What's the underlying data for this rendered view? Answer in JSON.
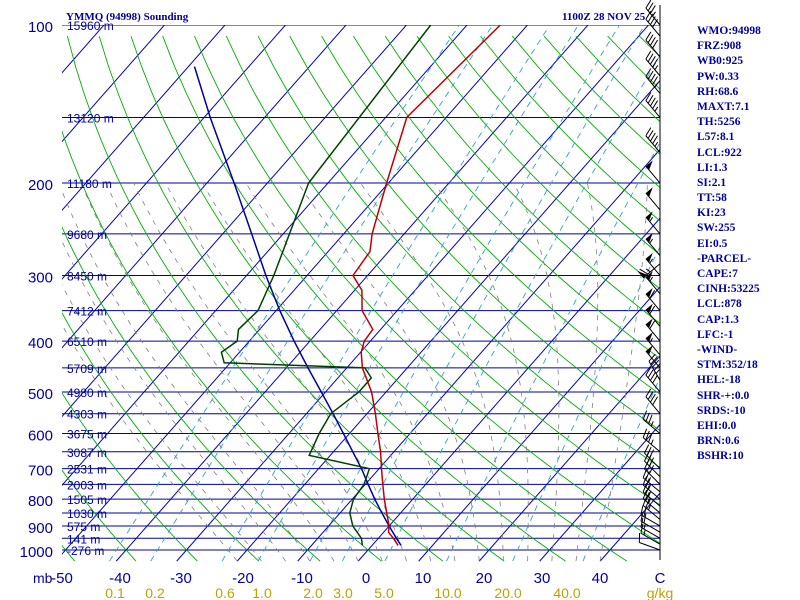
{
  "header": {
    "title": "YMMQ (94998) Sounding",
    "timestamp": "1100Z 28 NOV 25"
  },
  "colors": {
    "isobar": "#0000a0",
    "isotherm": "#0000c0",
    "dry_adiabat": "#00b000",
    "moist_adiabat": "#7f7f7f",
    "mixing_ratio": "#30a0d0",
    "temperature": "#c00000",
    "dewpoint": "#004000",
    "parcel": "#0000a0",
    "wind": "#000000",
    "axis_text": "#0000a0",
    "mixing_text": "#c0a000",
    "side_text": "#0000a0"
  },
  "side_panel": [
    "WMO:94998",
    "FRZ:908",
    "WB0:925",
    "PW:0.33",
    "RH:68.6",
    "MAXT:7.1",
    "TH:5256",
    "L57:8.1",
    "LCL:922",
    "LI:1.3",
    "SI:2.1",
    "TT:58",
    "KI:23",
    "SW:255",
    "EI:0.5",
    "-PARCEL-",
    "CAPE:7",
    "CINH:53225",
    "LCL:878",
    "CAP:1.3",
    "LFC:-1",
    "-WIND-",
    "STM:352/18",
    "HEL:-18",
    "SHR-+:0.0",
    "SRDS:-10",
    "EHI:0.0",
    "BRN:0.6",
    "BSHR:10"
  ],
  "chart_data": {
    "type": "skew-t",
    "title": "YMMQ (94998) Sounding",
    "x_axis_unit": "C",
    "y_axis_unit": "mb",
    "mixing_ratio_unit": "g/kg",
    "pressure_ticks": [
      "100",
      "200",
      "300",
      "400",
      "500",
      "600",
      "700",
      "800",
      "900",
      "1000"
    ],
    "temperature_ticks": [
      "-50",
      "-40",
      "-30",
      "-20",
      "-10",
      "0",
      "10",
      "20",
      "30",
      "40",
      "C"
    ],
    "mixing_ratio_ticks": [
      "0.1",
      "0.2",
      "0.6",
      "1.0",
      "2.0",
      "3.0",
      "5.0",
      "10.0",
      "20.0",
      "40.0",
      "g/kg"
    ],
    "height_labels": [
      {
        "p": 100,
        "label": "15960 m"
      },
      {
        "p": 150,
        "label": "13120 m"
      },
      {
        "p": 200,
        "label": "11180 m"
      },
      {
        "p": 250,
        "label": "9680 m"
      },
      {
        "p": 300,
        "label": "8450 m"
      },
      {
        "p": 350,
        "label": "7412 m"
      },
      {
        "p": 400,
        "label": "6510 m"
      },
      {
        "p": 450,
        "label": "5709 m"
      },
      {
        "p": 500,
        "label": "4980 m"
      },
      {
        "p": 550,
        "label": "4303 m"
      },
      {
        "p": 600,
        "label": "3675 m"
      },
      {
        "p": 650,
        "label": "3087 m"
      },
      {
        "p": 700,
        "label": "2531 m"
      },
      {
        "p": 750,
        "label": "2003 m"
      },
      {
        "p": 800,
        "label": "1505 m"
      },
      {
        "p": 850,
        "label": "1030 m"
      },
      {
        "p": 900,
        "label": "575 m"
      },
      {
        "p": 950,
        "label": "141 m"
      },
      {
        "p": 1000,
        "label": "-276 m"
      }
    ],
    "temperature_profile": [
      {
        "p": 980,
        "t": 4.3
      },
      {
        "p": 950,
        "t": 2.5
      },
      {
        "p": 925,
        "t": 0.8
      },
      {
        "p": 900,
        "t": 0.0
      },
      {
        "p": 850,
        "t": -2.3
      },
      {
        "p": 800,
        "t": -4.7
      },
      {
        "p": 750,
        "t": -7.1
      },
      {
        "p": 700,
        "t": -9.6
      },
      {
        "p": 650,
        "t": -12.2
      },
      {
        "p": 600,
        "t": -15.3
      },
      {
        "p": 550,
        "t": -18.6
      },
      {
        "p": 500,
        "t": -22.4
      },
      {
        "p": 450,
        "t": -27.4
      },
      {
        "p": 420,
        "t": -29.9
      },
      {
        "p": 400,
        "t": -31.0
      },
      {
        "p": 380,
        "t": -31.3
      },
      {
        "p": 350,
        "t": -35.8
      },
      {
        "p": 320,
        "t": -38.8
      },
      {
        "p": 300,
        "t": -42.4
      },
      {
        "p": 270,
        "t": -43.1
      },
      {
        "p": 250,
        "t": -45.3
      },
      {
        "p": 200,
        "t": -50.3
      },
      {
        "p": 150,
        "t": -56.5
      },
      {
        "p": 100,
        "t": -54.5
      }
    ],
    "dewpoint_profile": [
      {
        "p": 980,
        "t": -1.6
      },
      {
        "p": 950,
        "t": -2.8
      },
      {
        "p": 900,
        "t": -6.0
      },
      {
        "p": 850,
        "t": -8.4
      },
      {
        "p": 800,
        "t": -9.8
      },
      {
        "p": 750,
        "t": -10.2
      },
      {
        "p": 700,
        "t": -11.6
      },
      {
        "p": 660,
        "t": -23.5
      },
      {
        "p": 600,
        "t": -25.0
      },
      {
        "p": 550,
        "t": -26.0
      },
      {
        "p": 500,
        "t": -24.5
      },
      {
        "p": 470,
        "t": -24.5
      },
      {
        "p": 450,
        "t": -27.0
      },
      {
        "p": 440,
        "t": -51.0
      },
      {
        "p": 420,
        "t": -53.0
      },
      {
        "p": 400,
        "t": -52.0
      },
      {
        "p": 380,
        "t": -53.5
      },
      {
        "p": 350,
        "t": -53.0
      },
      {
        "p": 300,
        "t": -55.5
      },
      {
        "p": 200,
        "t": -63.2
      },
      {
        "p": 100,
        "t": -66.0
      }
    ],
    "parcel_profile": [
      {
        "p": 980,
        "t": 4.8
      },
      {
        "p": 950,
        "t": 3.0
      },
      {
        "p": 900,
        "t": 0.0
      },
      {
        "p": 850,
        "t": -3.1
      },
      {
        "p": 800,
        "t": -6.3
      },
      {
        "p": 750,
        "t": -9.5
      },
      {
        "p": 700,
        "t": -12.9
      },
      {
        "p": 650,
        "t": -16.8
      },
      {
        "p": 600,
        "t": -21.0
      },
      {
        "p": 550,
        "t": -25.6
      },
      {
        "p": 500,
        "t": -30.7
      },
      {
        "p": 450,
        "t": -36.4
      },
      {
        "p": 400,
        "t": -42.6
      },
      {
        "p": 350,
        "t": -49.4
      },
      {
        "p": 300,
        "t": -56.8
      },
      {
        "p": 250,
        "t": -65.2
      },
      {
        "p": 200,
        "t": -75.5
      },
      {
        "p": 150,
        "t": -89.0
      },
      {
        "p": 120,
        "t": -99.0
      }
    ],
    "wind_barbs": [
      {
        "p": 1000,
        "dir": 290,
        "spd": 10
      },
      {
        "p": 975,
        "dir": 300,
        "spd": 15
      },
      {
        "p": 950,
        "dir": 300,
        "spd": 15
      },
      {
        "p": 925,
        "dir": 300,
        "spd": 20
      },
      {
        "p": 900,
        "dir": 300,
        "spd": 20
      },
      {
        "p": 875,
        "dir": 310,
        "spd": 25
      },
      {
        "p": 850,
        "dir": 310,
        "spd": 25
      },
      {
        "p": 825,
        "dir": 310,
        "spd": 25
      },
      {
        "p": 800,
        "dir": 310,
        "spd": 25
      },
      {
        "p": 775,
        "dir": 310,
        "spd": 25
      },
      {
        "p": 750,
        "dir": 315,
        "spd": 30
      },
      {
        "p": 725,
        "dir": 315,
        "spd": 30
      },
      {
        "p": 700,
        "dir": 315,
        "spd": 30
      },
      {
        "p": 650,
        "dir": 310,
        "spd": 35
      },
      {
        "p": 600,
        "dir": 310,
        "spd": 35
      },
      {
        "p": 550,
        "dir": 320,
        "spd": 40
      },
      {
        "p": 500,
        "dir": 320,
        "spd": 40
      },
      {
        "p": 475,
        "dir": 330,
        "spd": 45
      },
      {
        "p": 450,
        "dir": 320,
        "spd": 50
      },
      {
        "p": 425,
        "dir": 320,
        "spd": 55
      },
      {
        "p": 400,
        "dir": 320,
        "spd": 60
      },
      {
        "p": 375,
        "dir": 320,
        "spd": 60
      },
      {
        "p": 350,
        "dir": 320,
        "spd": 60
      },
      {
        "p": 325,
        "dir": 320,
        "spd": 55
      },
      {
        "p": 300,
        "dir": 320,
        "spd": 55
      },
      {
        "p": 285,
        "dir": 230,
        "spd": 65
      },
      {
        "p": 275,
        "dir": 320,
        "spd": 55
      },
      {
        "p": 250,
        "dir": 320,
        "spd": 55
      },
      {
        "p": 225,
        "dir": 320,
        "spd": 50
      },
      {
        "p": 200,
        "dir": 320,
        "spd": 50
      },
      {
        "p": 175,
        "dir": 320,
        "spd": 45
      },
      {
        "p": 150,
        "dir": 320,
        "spd": 45
      },
      {
        "p": 135,
        "dir": 320,
        "spd": 45
      },
      {
        "p": 125,
        "dir": 320,
        "spd": 45
      },
      {
        "p": 115,
        "dir": 320,
        "spd": 40
      },
      {
        "p": 105,
        "dir": 320,
        "spd": 40
      },
      {
        "p": 100,
        "dir": 320,
        "spd": 35
      }
    ]
  }
}
